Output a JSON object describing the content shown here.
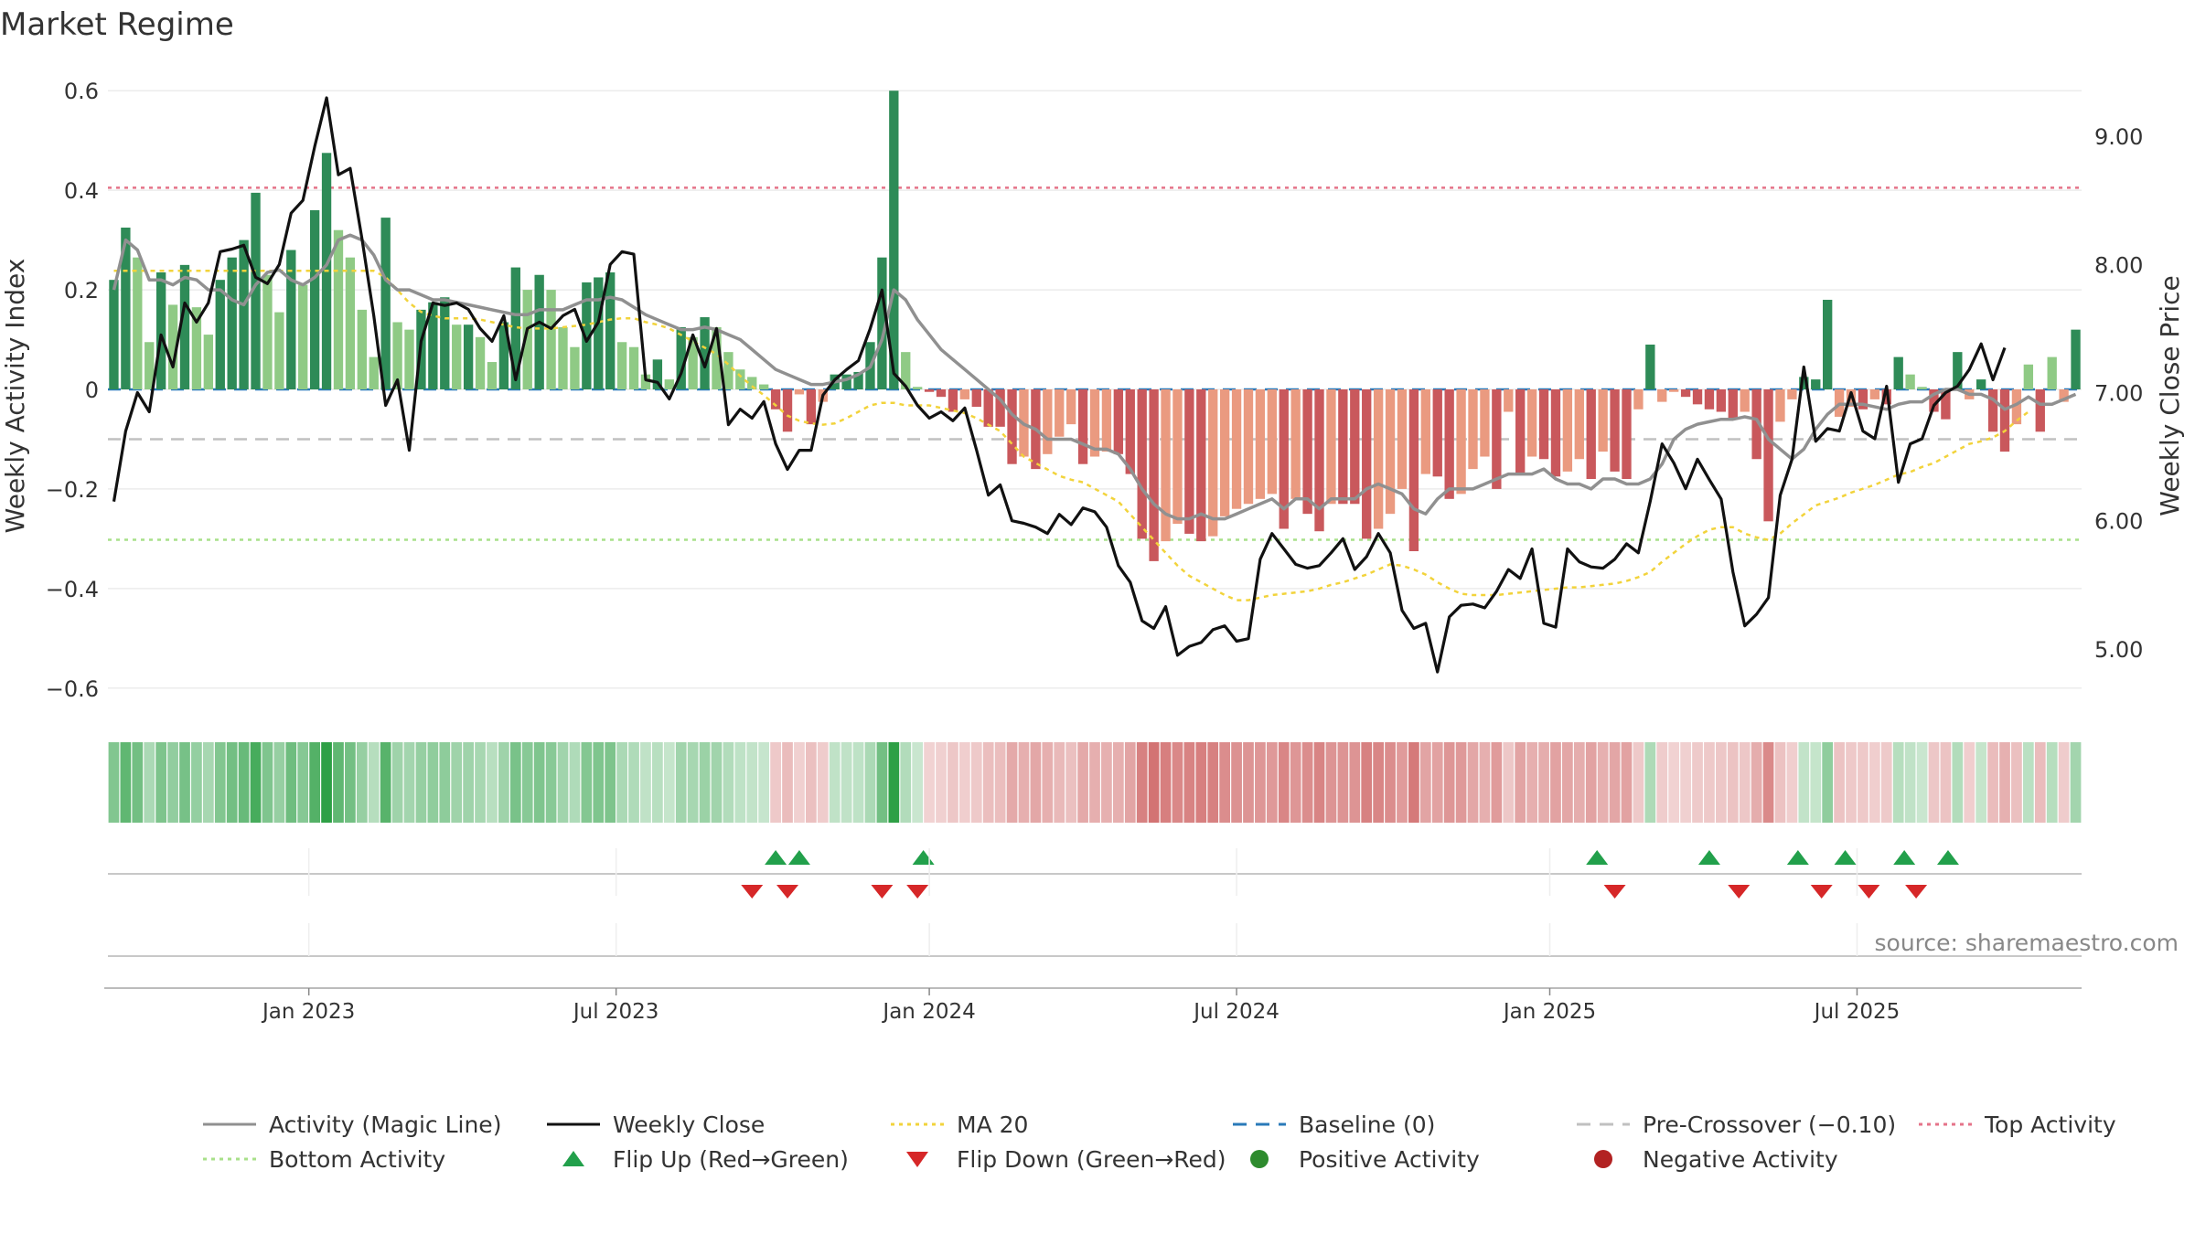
{
  "chart_data": {
    "type": "bar",
    "title": "Market Regime",
    "source": "source: sharemaestro.com",
    "y_left": {
      "label": "Weekly Activity Index",
      "range": [
        -0.65,
        0.65
      ],
      "ticks": [
        "0.6",
        "0.4",
        "0.2",
        "0",
        "−0.2",
        "−0.4",
        "−0.6"
      ],
      "tick_values": [
        0.6,
        0.4,
        0.2,
        0,
        -0.2,
        -0.4,
        -0.6
      ]
    },
    "y_right": {
      "label": "Weekly Close Price",
      "range": [
        4.5,
        9.55
      ],
      "ticks": [
        "9.00",
        "8.00",
        "7.00",
        "6.00",
        "5.00"
      ],
      "tick_values": [
        9,
        8,
        7,
        6,
        5
      ]
    },
    "x_ticks": [
      {
        "label": "Jan 2023",
        "week": 17
      },
      {
        "label": "Jul 2023",
        "week": 43
      },
      {
        "label": "Jan 2024",
        "week": 69.5
      },
      {
        "label": "Jul 2024",
        "week": 95.5
      },
      {
        "label": "Jan 2025",
        "week": 122
      },
      {
        "label": "Jul 2025",
        "week": 148
      }
    ],
    "reference_lines": {
      "top_activity": 0.405,
      "bottom_activity": -0.302,
      "pre_crossover": -0.1,
      "baseline": 0
    },
    "activity": [
      0.22,
      0.325,
      0.265,
      0.095,
      0.235,
      0.17,
      0.25,
      0.165,
      0.11,
      0.22,
      0.265,
      0.3,
      0.395,
      0.23,
      0.155,
      0.28,
      0.21,
      0.36,
      0.475,
      0.32,
      0.265,
      0.16,
      0.065,
      0.345,
      0.135,
      0.12,
      0.16,
      0.175,
      0.185,
      0.13,
      0.13,
      0.105,
      0.055,
      0.135,
      0.245,
      0.2,
      0.23,
      0.2,
      0.125,
      0.085,
      0.215,
      0.225,
      0.235,
      0.095,
      0.085,
      0.03,
      0.06,
      0.02,
      0.125,
      0.105,
      0.145,
      0.125,
      0.075,
      0.04,
      0.025,
      0.01,
      -0.04,
      -0.085,
      -0.01,
      -0.07,
      -0.025,
      0.03,
      0.03,
      0.035,
      0.095,
      0.265,
      0.6,
      0.075,
      0.005,
      -0.005,
      -0.015,
      -0.045,
      -0.02,
      -0.035,
      -0.075,
      -0.075,
      -0.15,
      -0.135,
      -0.16,
      -0.13,
      -0.095,
      -0.07,
      -0.15,
      -0.135,
      -0.125,
      -0.13,
      -0.17,
      -0.3,
      -0.345,
      -0.305,
      -0.27,
      -0.29,
      -0.305,
      -0.295,
      -0.255,
      -0.24,
      -0.23,
      -0.22,
      -0.21,
      -0.28,
      -0.22,
      -0.25,
      -0.285,
      -0.23,
      -0.23,
      -0.23,
      -0.3,
      -0.28,
      -0.25,
      -0.2,
      -0.325,
      -0.17,
      -0.175,
      -0.22,
      -0.21,
      -0.16,
      -0.135,
      -0.2,
      -0.045,
      -0.17,
      -0.135,
      -0.14,
      -0.175,
      -0.165,
      -0.14,
      -0.18,
      -0.125,
      -0.165,
      -0.18,
      -0.04,
      0.09,
      -0.025,
      -0.005,
      -0.015,
      -0.03,
      -0.04,
      -0.045,
      -0.06,
      -0.045,
      -0.14,
      -0.265,
      -0.065,
      -0.02,
      0.025,
      0.02,
      0.18,
      -0.055,
      -0.035,
      -0.04,
      -0.02,
      -0.03,
      0.065,
      0.03,
      0.005,
      -0.045,
      -0.06,
      0.075,
      -0.02,
      0.02,
      -0.085,
      -0.125,
      -0.07,
      0.05,
      -0.085,
      0.065,
      -0.025,
      0.12
    ],
    "weekly_close": [
      6.15,
      6.7,
      7.0,
      6.85,
      7.45,
      7.2,
      7.7,
      7.55,
      7.7,
      8.1,
      8.12,
      8.15,
      7.9,
      7.85,
      8.0,
      8.4,
      8.5,
      8.92,
      9.3,
      8.7,
      8.75,
      8.2,
      7.6,
      6.9,
      7.1,
      6.55,
      7.4,
      7.7,
      7.68,
      7.7,
      7.65,
      7.5,
      7.4,
      7.6,
      7.1,
      7.5,
      7.55,
      7.5,
      7.6,
      7.65,
      7.4,
      7.55,
      8.0,
      8.1,
      8.08,
      7.1,
      7.08,
      6.95,
      7.15,
      7.45,
      7.2,
      7.5,
      6.75,
      6.87,
      6.8,
      6.93,
      6.6,
      6.4,
      6.55,
      6.55,
      6.98,
      7.1,
      7.18,
      7.25,
      7.5,
      7.8,
      7.15,
      7.05,
      6.9,
      6.8,
      6.85,
      6.78,
      6.88,
      6.55,
      6.2,
      6.28,
      6.0,
      5.98,
      5.95,
      5.9,
      6.05,
      5.97,
      6.1,
      6.07,
      5.95,
      5.65,
      5.52,
      5.22,
      5.16,
      5.33,
      4.95,
      5.02,
      5.05,
      5.15,
      5.18,
      5.06,
      5.08,
      5.7,
      5.9,
      5.78,
      5.66,
      5.63,
      5.65,
      5.75,
      5.86,
      5.62,
      5.72,
      5.9,
      5.75,
      5.3,
      5.16,
      5.2,
      4.82,
      5.25,
      5.34,
      5.35,
      5.32,
      5.45,
      5.62,
      5.55,
      5.78,
      5.2,
      5.17,
      5.78,
      5.68,
      5.64,
      5.63,
      5.7,
      5.82,
      5.75,
      6.15,
      6.6,
      6.45,
      6.25,
      6.48,
      6.32,
      6.17,
      5.6,
      5.18,
      5.27,
      5.4,
      6.2,
      6.48,
      7.2,
      6.62,
      6.72,
      6.7,
      7.0,
      6.7,
      6.64,
      7.05,
      6.3,
      6.6,
      6.64,
      6.9,
      7.0,
      7.05,
      7.18,
      7.38,
      7.1,
      7.35
    ],
    "magic_line": [
      0.2,
      0.3,
      0.28,
      0.22,
      0.22,
      0.21,
      0.225,
      0.22,
      0.2,
      0.2,
      0.18,
      0.17,
      0.21,
      0.235,
      0.24,
      0.22,
      0.21,
      0.225,
      0.25,
      0.3,
      0.31,
      0.3,
      0.27,
      0.22,
      0.2,
      0.2,
      0.19,
      0.18,
      0.18,
      0.175,
      0.17,
      0.165,
      0.16,
      0.155,
      0.15,
      0.15,
      0.16,
      0.16,
      0.16,
      0.17,
      0.18,
      0.18,
      0.185,
      0.18,
      0.165,
      0.15,
      0.14,
      0.13,
      0.12,
      0.12,
      0.125,
      0.12,
      0.11,
      0.1,
      0.08,
      0.06,
      0.04,
      0.03,
      0.02,
      0.01,
      0.01,
      0.015,
      0.02,
      0.03,
      0.045,
      0.1,
      0.2,
      0.18,
      0.14,
      0.11,
      0.08,
      0.06,
      0.04,
      0.02,
      0.0,
      -0.02,
      -0.05,
      -0.07,
      -0.08,
      -0.1,
      -0.1,
      -0.1,
      -0.11,
      -0.12,
      -0.12,
      -0.13,
      -0.16,
      -0.2,
      -0.23,
      -0.25,
      -0.26,
      -0.26,
      -0.25,
      -0.26,
      -0.26,
      -0.25,
      -0.24,
      -0.23,
      -0.22,
      -0.24,
      -0.22,
      -0.22,
      -0.24,
      -0.22,
      -0.22,
      -0.22,
      -0.2,
      -0.19,
      -0.2,
      -0.21,
      -0.24,
      -0.25,
      -0.22,
      -0.2,
      -0.2,
      -0.2,
      -0.19,
      -0.18,
      -0.17,
      -0.17,
      -0.17,
      -0.16,
      -0.18,
      -0.19,
      -0.19,
      -0.2,
      -0.18,
      -0.18,
      -0.19,
      -0.19,
      -0.18,
      -0.15,
      -0.1,
      -0.08,
      -0.07,
      -0.065,
      -0.06,
      -0.06,
      -0.055,
      -0.06,
      -0.1,
      -0.12,
      -0.14,
      -0.12,
      -0.08,
      -0.05,
      -0.03,
      -0.03,
      -0.03,
      -0.035,
      -0.04,
      -0.03,
      -0.025,
      -0.025,
      -0.01,
      0.0,
      0.0,
      -0.01,
      -0.01,
      -0.02,
      -0.04,
      -0.03,
      -0.015,
      -0.03,
      -0.03,
      -0.02,
      -0.01
    ],
    "ma20": [
      7.95,
      7.95,
      7.95,
      7.95,
      7.95,
      7.95,
      7.95,
      7.95,
      7.95,
      7.95,
      7.95,
      7.95,
      7.95,
      7.95,
      7.95,
      7.95,
      7.95,
      7.95,
      7.95,
      7.95,
      7.95,
      7.95,
      7.95,
      7.9,
      7.8,
      7.7,
      7.63,
      7.6,
      7.58,
      7.58,
      7.58,
      7.57,
      7.55,
      7.53,
      7.51,
      7.5,
      7.5,
      7.5,
      7.51,
      7.52,
      7.53,
      7.55,
      7.57,
      7.58,
      7.58,
      7.55,
      7.53,
      7.5,
      7.45,
      7.4,
      7.35,
      7.3,
      7.22,
      7.13,
      7.05,
      6.98,
      6.9,
      6.82,
      6.78,
      6.76,
      6.75,
      6.76,
      6.8,
      6.85,
      6.9,
      6.92,
      6.92,
      6.9,
      6.9,
      6.9,
      6.88,
      6.86,
      6.84,
      6.8,
      6.75,
      6.7,
      6.6,
      6.5,
      6.45,
      6.4,
      6.35,
      6.32,
      6.3,
      6.25,
      6.2,
      6.15,
      6.05,
      5.95,
      5.85,
      5.75,
      5.65,
      5.57,
      5.52,
      5.47,
      5.42,
      5.38,
      5.38,
      5.4,
      5.42,
      5.43,
      5.44,
      5.45,
      5.47,
      5.5,
      5.52,
      5.55,
      5.58,
      5.62,
      5.66,
      5.65,
      5.62,
      5.58,
      5.52,
      5.47,
      5.43,
      5.42,
      5.42,
      5.42,
      5.43,
      5.44,
      5.45,
      5.46,
      5.47,
      5.48,
      5.48,
      5.49,
      5.5,
      5.51,
      5.53,
      5.56,
      5.6,
      5.68,
      5.75,
      5.82,
      5.88,
      5.93,
      5.95,
      5.95,
      5.9,
      5.87,
      5.85,
      5.9,
      5.98,
      6.05,
      6.12,
      6.15,
      6.18,
      6.22,
      6.25,
      6.28,
      6.32,
      6.36,
      6.38,
      6.42,
      6.45,
      6.5,
      6.55,
      6.6,
      6.62,
      6.65,
      6.7,
      6.78,
      6.85
    ],
    "flip_up_weeks": [
      56.5,
      58.5,
      69,
      126,
      135.5,
      143,
      147,
      152,
      155.7
    ],
    "flip_down_weeks": [
      54.5,
      57.5,
      65.5,
      68.5,
      127.5,
      138,
      145,
      149,
      153
    ],
    "colors": {
      "green_dark": "#2e8b57",
      "green_light": "#8fca85",
      "red_dark": "#c9585c",
      "red_light": "#ea9a80",
      "magic_line": "#909090",
      "weekly_close": "#111111",
      "ma20": "#f2d33b",
      "baseline": "#2a7ab9",
      "pre_crossover": "#c0c0c0",
      "top_activity": "#e57389",
      "bottom_activity": "#a8e08a",
      "flip_up": "#22a04b",
      "flip_down": "#d62728",
      "positive_activity": "#2e8b2e",
      "negative_activity": "#b22222"
    },
    "legend": [
      {
        "label": "Activity (Magic Line)",
        "kind": "line",
        "style": "solid",
        "color": "#909090"
      },
      {
        "label": "Weekly Close",
        "kind": "line",
        "style": "solid",
        "color": "#111111"
      },
      {
        "label": "MA 20",
        "kind": "line",
        "style": "dotted",
        "color": "#f2d33b"
      },
      {
        "label": "Baseline (0)",
        "kind": "line",
        "style": "dashed",
        "color": "#2a7ab9"
      },
      {
        "label": "Pre-Crossover (−0.10)",
        "kind": "line",
        "style": "dashed",
        "color": "#c0c0c0"
      },
      {
        "label": "Top Activity",
        "kind": "line",
        "style": "dotted",
        "color": "#e57389"
      },
      {
        "label": "Bottom Activity",
        "kind": "line",
        "style": "dotted",
        "color": "#a8e08a"
      },
      {
        "label": "Flip Up (Red→Green)",
        "kind": "triangle-up",
        "color": "#22a04b"
      },
      {
        "label": "Flip Down (Green→Red)",
        "kind": "triangle-down",
        "color": "#d62728"
      },
      {
        "label": "Positive Activity",
        "kind": "circle",
        "color": "#2e8b2e"
      },
      {
        "label": "Negative Activity",
        "kind": "circle",
        "color": "#b22222"
      }
    ]
  }
}
